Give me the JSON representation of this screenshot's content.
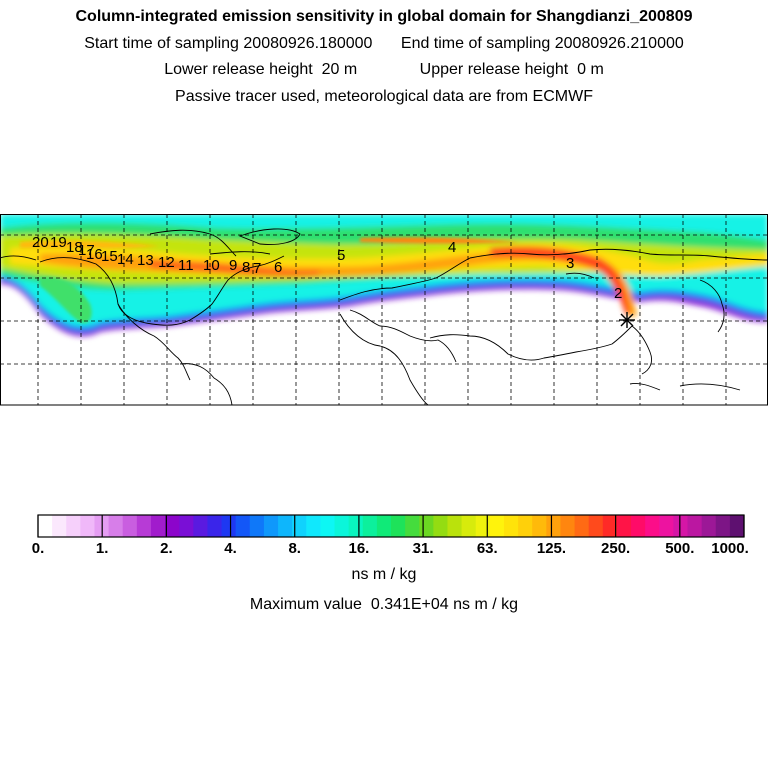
{
  "header": {
    "title": "Column-integrated emission sensitivity in global domain for Shangdianzi_200809",
    "start_label": "Start time of sampling",
    "start_value": "20080926.180000",
    "end_label": "End time of sampling",
    "end_value": "20080926.210000",
    "lower_label": "Lower release height",
    "lower_value": "20 m",
    "upper_label": "Upper release height",
    "upper_value": "0 m",
    "note": "Passive tracer used, meteorological data are from ECMWF"
  },
  "map": {
    "projection": "global lat-lon",
    "day_markers": [
      "2",
      "3",
      "4",
      "5",
      "6",
      "7",
      "8",
      "9",
      "10",
      "11",
      "12",
      "13",
      "14",
      "15",
      "16",
      "17",
      "18",
      "19",
      "20"
    ],
    "station_marker": "star"
  },
  "colorbar": {
    "tick_labels": [
      "0.",
      "1.",
      "2.",
      "4.",
      "8.",
      "16.",
      "31.",
      "63.",
      "125.",
      "250.",
      "500.",
      "1000."
    ],
    "colors": [
      "#ffffff",
      "#fbe8fd",
      "#f6d0fb",
      "#f0b8f9",
      "#e59df3",
      "#d77ee9",
      "#c95ee0",
      "#b73bd6",
      "#a11ccc",
      "#8c05cb",
      "#7a0fd6",
      "#5a1ae0",
      "#3a25ea",
      "#1e38f2",
      "#1357f7",
      "#0f78f9",
      "#0f98fb",
      "#0eb6fc",
      "#10d2fd",
      "#10e8fd",
      "#0df7f4",
      "#0bf6da",
      "#09f5bf",
      "#0cf09c",
      "#10ea78",
      "#1ee25a",
      "#45dc3d",
      "#6bd822",
      "#94dc12",
      "#bae20c",
      "#d7eb0c",
      "#eef20d",
      "#fff30c",
      "#ffe30a",
      "#ffd00a",
      "#ffba0a",
      "#ffa10c",
      "#ff860f",
      "#ff6a14",
      "#ff4a1c",
      "#ff2a27",
      "#ff1447",
      "#ff0b68",
      "#fc0d89",
      "#ed13a0",
      "#d516a6",
      "#bb17a1",
      "#9c1897",
      "#7d1586",
      "#5e1070"
    ],
    "units": "ns m / kg",
    "max_label": "Maximum value",
    "max_value": "0.341E+04",
    "max_units": "ns m / kg"
  }
}
